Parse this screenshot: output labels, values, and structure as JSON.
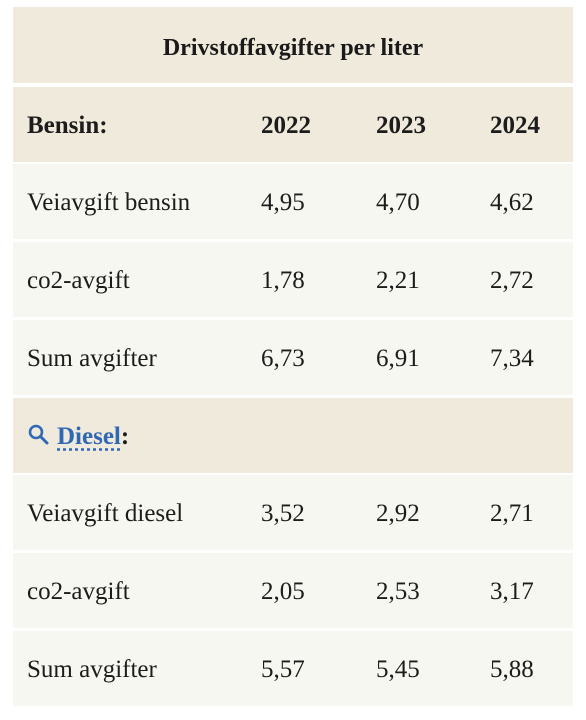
{
  "table": {
    "title": "Drivstoffavgifter per liter",
    "years": [
      "2022",
      "2023",
      "2024"
    ],
    "bensin": {
      "header": "Bensin:",
      "rows": [
        {
          "label": "Veiavgift bensin",
          "values": [
            "4,95",
            "4,70",
            "4,62"
          ]
        },
        {
          "label": "co2-avgift",
          "values": [
            "1,78",
            "2,21",
            "2,72"
          ]
        },
        {
          "label": "Sum avgifter",
          "values": [
            "6,73",
            "6,91",
            "7,34"
          ]
        }
      ]
    },
    "diesel": {
      "header_link": "Diesel",
      "header_suffix": ":",
      "header_icon": "search-icon",
      "rows": [
        {
          "label": "Veiavgift diesel",
          "values": [
            "3,52",
            "2,92",
            "2,71"
          ]
        },
        {
          "label": "co2-avgift",
          "values": [
            "2,05",
            "2,53",
            "3,17"
          ]
        },
        {
          "label": "Sum avgifter",
          "values": [
            "5,57",
            "5,45",
            "5,88"
          ]
        }
      ]
    },
    "colors": {
      "header_bg": "#efeadb",
      "row_bg": "#f7f7f1",
      "link": "#2f68b4"
    }
  }
}
